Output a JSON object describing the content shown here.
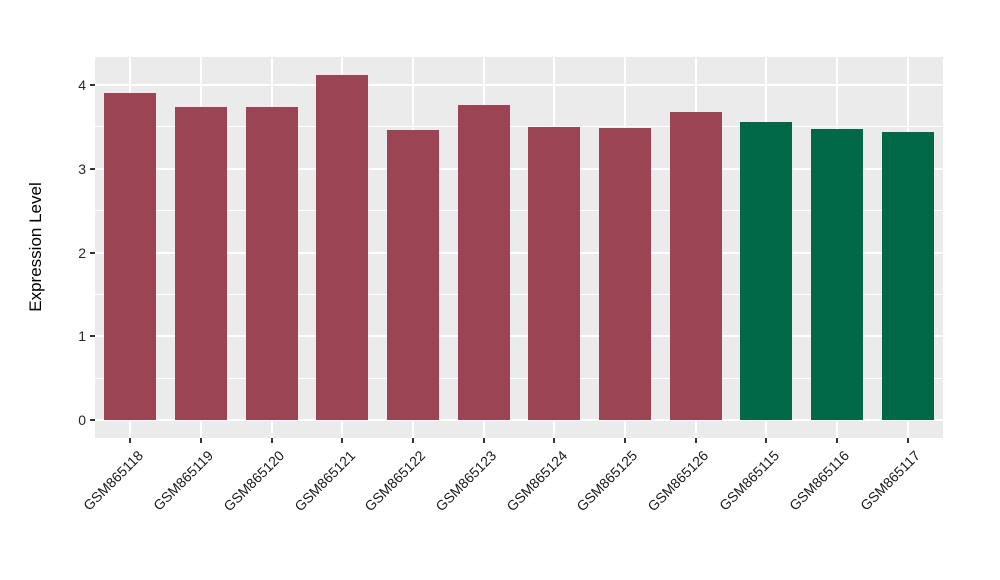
{
  "chart_data": {
    "type": "bar",
    "title": "",
    "xlabel": "",
    "ylabel": "Expression Level",
    "categories": [
      "GSM865118",
      "GSM865119",
      "GSM865120",
      "GSM865121",
      "GSM865122",
      "GSM865123",
      "GSM865124",
      "GSM865125",
      "GSM865126",
      "GSM865115",
      "GSM865116",
      "GSM865117"
    ],
    "values": [
      3.9,
      3.74,
      3.74,
      4.12,
      3.46,
      3.76,
      3.5,
      3.48,
      3.67,
      3.56,
      3.47,
      3.44
    ],
    "bar_groups": [
      "red",
      "red",
      "red",
      "red",
      "red",
      "red",
      "red",
      "red",
      "red",
      "green",
      "green",
      "green"
    ],
    "group_colors": {
      "red": "#9A4454",
      "green": "#006847"
    },
    "yticks": [
      0,
      1,
      2,
      3,
      4
    ],
    "yticks_minor": [
      0.5,
      1.5,
      2.5,
      3.5
    ],
    "ylim": [
      -0.21,
      4.33
    ],
    "grid": "on",
    "legend_position": "none",
    "panel_background": "#EBEBEB",
    "grid_color": "#FFFFFF",
    "tick_mark_color": "#333333",
    "axis_text_color": "#262626"
  }
}
